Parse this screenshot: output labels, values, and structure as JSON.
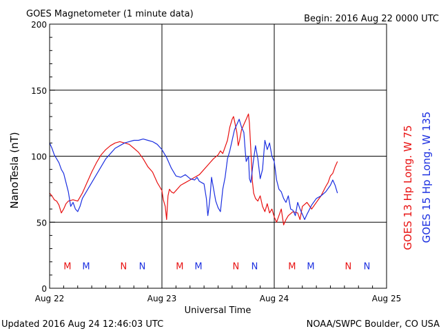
{
  "chart_data": {
    "type": "line",
    "title": "GOES Magnetometer (1 minute data)",
    "begin_label": "Begin:  2016 Aug 22 0000 UTC",
    "xlabel": "Universal Time",
    "ylabel": "NanoTesla (nT)",
    "ylim": [
      0,
      200
    ],
    "yticks": [
      0,
      50,
      100,
      150,
      200
    ],
    "xlim_hours": [
      0,
      72
    ],
    "x_unit": "hours since 2016 Aug 22 0000 UTC",
    "xticks": [
      {
        "hour": 0,
        "label": "Aug 22"
      },
      {
        "hour": 24,
        "label": "Aug 23"
      },
      {
        "hour": 48,
        "label": "Aug 24"
      },
      {
        "hour": 72,
        "label": "Aug 25"
      }
    ],
    "grid": true,
    "colors": {
      "goes13": "#e81010",
      "goes15": "#1a2ee0"
    },
    "series": [
      {
        "name": "GOES 13 Hp  Long. W 75",
        "key": "goes13",
        "color": "#e81010",
        "points": [
          [
            0,
            72
          ],
          [
            0.5,
            70
          ],
          [
            1,
            67
          ],
          [
            1.5,
            66
          ],
          [
            2,
            63
          ],
          [
            2.5,
            57
          ],
          [
            3,
            60
          ],
          [
            3.5,
            64
          ],
          [
            4,
            66
          ],
          [
            5,
            67
          ],
          [
            6,
            66
          ],
          [
            7,
            72
          ],
          [
            8,
            80
          ],
          [
            9,
            88
          ],
          [
            10,
            95
          ],
          [
            11,
            101
          ],
          [
            12,
            105
          ],
          [
            13,
            108
          ],
          [
            14,
            110
          ],
          [
            15,
            111
          ],
          [
            16,
            110
          ],
          [
            17,
            109
          ],
          [
            18,
            106
          ],
          [
            19,
            103
          ],
          [
            20,
            98
          ],
          [
            20.5,
            95
          ],
          [
            21,
            92
          ],
          [
            22,
            88
          ],
          [
            22.5,
            84
          ],
          [
            23,
            80
          ],
          [
            23.5,
            77
          ],
          [
            24,
            74
          ],
          [
            24.3,
            67
          ],
          [
            24.7,
            62
          ],
          [
            25,
            52
          ],
          [
            25.3,
            70
          ],
          [
            25.6,
            75
          ],
          [
            26,
            73
          ],
          [
            26.5,
            72
          ],
          [
            27,
            74
          ],
          [
            28,
            78
          ],
          [
            29,
            80
          ],
          [
            30,
            82
          ],
          [
            31,
            84
          ],
          [
            32,
            86
          ],
          [
            33,
            90
          ],
          [
            34,
            94
          ],
          [
            35,
            98
          ],
          [
            36,
            101
          ],
          [
            36.5,
            104
          ],
          [
            37,
            102
          ],
          [
            38,
            112
          ],
          [
            38.5,
            122
          ],
          [
            39,
            128
          ],
          [
            39.3,
            130
          ],
          [
            39.6,
            125
          ],
          [
            40,
            118
          ],
          [
            40.3,
            108
          ],
          [
            40.6,
            112
          ],
          [
            41,
            120
          ],
          [
            41.5,
            124
          ],
          [
            42,
            128
          ],
          [
            42.5,
            132
          ],
          [
            42.7,
            125
          ],
          [
            43,
            105
          ],
          [
            43.3,
            82
          ],
          [
            43.6,
            72
          ],
          [
            44,
            68
          ],
          [
            44.5,
            66
          ],
          [
            45,
            70
          ],
          [
            45.5,
            62
          ],
          [
            46,
            58
          ],
          [
            46.5,
            64
          ],
          [
            47,
            57
          ],
          [
            47.5,
            60
          ],
          [
            48,
            54
          ],
          [
            48.5,
            50
          ],
          [
            49,
            55
          ],
          [
            49.5,
            60
          ],
          [
            50,
            48
          ],
          [
            50.5,
            52
          ],
          [
            51,
            55
          ],
          [
            52,
            58
          ],
          [
            53,
            57
          ],
          [
            53.5,
            52
          ],
          [
            54,
            62
          ],
          [
            55,
            65
          ],
          [
            56,
            60
          ],
          [
            57,
            65
          ],
          [
            58,
            70
          ],
          [
            59,
            77
          ],
          [
            59.5,
            80
          ],
          [
            60,
            85
          ],
          [
            60.5,
            87
          ],
          [
            61,
            92
          ],
          [
            61.5,
            96
          ]
        ]
      },
      {
        "name": "GOES 15 Hp  Long. W 135",
        "key": "goes15",
        "color": "#1a2ee0",
        "points": [
          [
            0,
            110
          ],
          [
            0.5,
            106
          ],
          [
            1,
            101
          ],
          [
            1.5,
            98
          ],
          [
            2,
            95
          ],
          [
            2.5,
            90
          ],
          [
            3,
            87
          ],
          [
            3.5,
            80
          ],
          [
            4,
            73
          ],
          [
            4.5,
            62
          ],
          [
            5,
            65
          ],
          [
            5.5,
            60
          ],
          [
            6,
            58
          ],
          [
            6.5,
            62
          ],
          [
            7,
            68
          ],
          [
            8,
            74
          ],
          [
            9,
            80
          ],
          [
            10,
            86
          ],
          [
            11,
            92
          ],
          [
            12,
            98
          ],
          [
            13,
            102
          ],
          [
            14,
            106
          ],
          [
            15,
            108
          ],
          [
            16,
            110
          ],
          [
            17,
            111
          ],
          [
            18,
            112
          ],
          [
            19,
            112
          ],
          [
            20,
            113
          ],
          [
            21,
            112
          ],
          [
            22,
            111
          ],
          [
            22.5,
            110
          ],
          [
            23,
            109
          ],
          [
            24,
            105
          ],
          [
            25,
            99
          ],
          [
            26,
            91
          ],
          [
            27,
            85
          ],
          [
            28,
            84
          ],
          [
            29,
            86
          ],
          [
            30,
            83
          ],
          [
            31,
            82
          ],
          [
            31.5,
            84
          ],
          [
            32,
            81
          ],
          [
            32.5,
            80
          ],
          [
            33,
            79
          ],
          [
            33.5,
            68
          ],
          [
            33.8,
            55
          ],
          [
            34,
            60
          ],
          [
            34.3,
            70
          ],
          [
            34.6,
            84
          ],
          [
            35,
            76
          ],
          [
            35.5,
            66
          ],
          [
            36,
            61
          ],
          [
            36.5,
            58
          ],
          [
            37,
            75
          ],
          [
            37.5,
            84
          ],
          [
            38,
            98
          ],
          [
            38.5,
            104
          ],
          [
            39,
            112
          ],
          [
            39.5,
            120
          ],
          [
            40,
            124
          ],
          [
            40.5,
            128
          ],
          [
            41,
            122
          ],
          [
            41.5,
            118
          ],
          [
            41.8,
            104
          ],
          [
            42,
            96
          ],
          [
            42.5,
            100
          ],
          [
            42.7,
            83
          ],
          [
            43,
            80
          ],
          [
            43.5,
            95
          ],
          [
            44,
            108
          ],
          [
            44.5,
            98
          ],
          [
            45,
            83
          ],
          [
            45.5,
            90
          ],
          [
            46,
            112
          ],
          [
            46.5,
            105
          ],
          [
            47,
            110
          ],
          [
            47.5,
            100
          ],
          [
            48,
            96
          ],
          [
            48.5,
            82
          ],
          [
            49,
            75
          ],
          [
            49.5,
            73
          ],
          [
            50,
            68
          ],
          [
            50.5,
            65
          ],
          [
            51,
            70
          ],
          [
            51.5,
            60
          ],
          [
            52,
            59
          ],
          [
            52.5,
            55
          ],
          [
            53,
            65
          ],
          [
            53.5,
            60
          ],
          [
            54,
            56
          ],
          [
            54.5,
            52
          ],
          [
            55,
            56
          ],
          [
            56,
            63
          ],
          [
            57,
            68
          ],
          [
            58,
            70
          ],
          [
            59,
            73
          ],
          [
            60,
            78
          ],
          [
            60.5,
            82
          ],
          [
            61,
            78
          ],
          [
            61.5,
            72
          ]
        ]
      }
    ],
    "markers": [
      {
        "hour": 3.8,
        "label": "M",
        "color": "#e81010"
      },
      {
        "hour": 7.8,
        "label": "M",
        "color": "#1a2ee0"
      },
      {
        "hour": 15.8,
        "label": "N",
        "color": "#e81010"
      },
      {
        "hour": 19.8,
        "label": "N",
        "color": "#1a2ee0"
      },
      {
        "hour": 27.8,
        "label": "M",
        "color": "#e81010"
      },
      {
        "hour": 31.8,
        "label": "M",
        "color": "#1a2ee0"
      },
      {
        "hour": 39.8,
        "label": "N",
        "color": "#e81010"
      },
      {
        "hour": 43.8,
        "label": "N",
        "color": "#1a2ee0"
      },
      {
        "hour": 51.8,
        "label": "M",
        "color": "#e81010"
      },
      {
        "hour": 55.8,
        "label": "M",
        "color": "#1a2ee0"
      },
      {
        "hour": 63.8,
        "label": "N",
        "color": "#e81010"
      },
      {
        "hour": 67.8,
        "label": "N",
        "color": "#1a2ee0"
      }
    ],
    "marker_level": 17
  },
  "footer": {
    "updated": "Updated 2016 Aug 24 12:46:03 UTC",
    "source": "NOAA/SWPC Boulder, CO USA"
  }
}
